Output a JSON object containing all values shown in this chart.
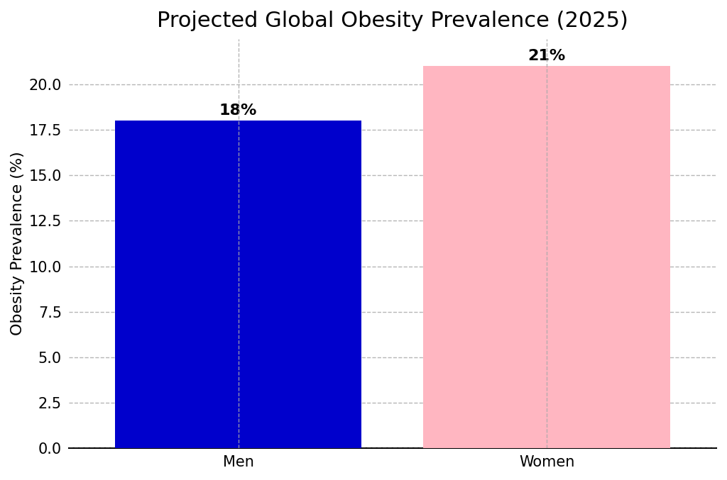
{
  "categories": [
    "Men",
    "Women"
  ],
  "values": [
    18,
    21
  ],
  "bar_colors": [
    "#0000CC",
    "#FFB6C1"
  ],
  "title": "Projected Global Obesity Prevalence (2025)",
  "ylabel": "Obesity Prevalence (%)",
  "ylim": [
    0,
    22.5
  ],
  "yticks": [
    0.0,
    2.5,
    5.0,
    7.5,
    10.0,
    12.5,
    15.0,
    17.5,
    20.0
  ],
  "bar_labels": [
    "18%",
    "21%"
  ],
  "title_fontsize": 22,
  "label_fontsize": 16,
  "tick_fontsize": 15,
  "bar_label_fontsize": 16,
  "grid_color": "#aaaaaa",
  "grid_style": "--",
  "grid_alpha": 0.85,
  "background_color": "#ffffff",
  "bar_width": 0.8,
  "xlim": [
    -0.55,
    1.55
  ]
}
